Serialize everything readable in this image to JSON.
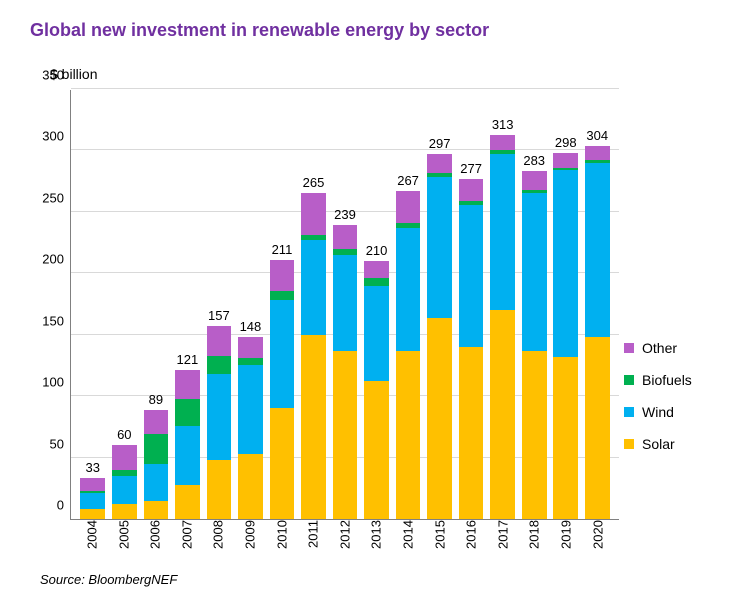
{
  "chart": {
    "type": "bar-stacked",
    "title": "Global new investment in renewable energy by sector",
    "title_color": "#7030a0",
    "title_fontsize": 18,
    "ylabel": "$ billion",
    "label_fontsize": 14,
    "ylim": [
      0,
      350
    ],
    "ytick_step": 50,
    "yticks": [
      0,
      50,
      100,
      150,
      200,
      250,
      300,
      350
    ],
    "grid_color": "#d9d9d9",
    "axis_color": "#808080",
    "background_color": "#ffffff",
    "bar_width": 0.78,
    "categories": [
      "2004",
      "2005",
      "2006",
      "2007",
      "2008",
      "2009",
      "2010",
      "2011",
      "2012",
      "2013",
      "2014",
      "2015",
      "2016",
      "2017",
      "2018",
      "2019",
      "2020"
    ],
    "series": [
      {
        "name": "Solar",
        "color": "#ffc000"
      },
      {
        "name": "Wind",
        "color": "#00b0f0"
      },
      {
        "name": "Biofuels",
        "color": "#00b050"
      },
      {
        "name": "Other",
        "color": "#b85ec8"
      }
    ],
    "values": {
      "Solar": [
        8,
        12,
        15,
        28,
        48,
        53,
        90,
        150,
        137,
        112,
        137,
        164,
        140,
        170,
        137,
        132,
        148
      ],
      "Wind": [
        13,
        23,
        30,
        48,
        70,
        72,
        88,
        77,
        78,
        78,
        100,
        114,
        116,
        127,
        128,
        152,
        142
      ],
      "Biofuels": [
        2,
        5,
        24,
        22,
        15,
        6,
        8,
        4,
        5,
        6,
        4,
        4,
        3,
        3,
        3,
        2,
        2
      ],
      "Other": [
        10,
        20,
        20,
        23,
        24,
        17,
        25,
        34,
        19,
        14,
        26,
        15,
        18,
        13,
        15,
        12,
        12
      ]
    },
    "totals": [
      33,
      60,
      89,
      121,
      157,
      148,
      211,
      265,
      239,
      210,
      267,
      297,
      277,
      313,
      283,
      298,
      304
    ],
    "legend_order": [
      "Other",
      "Biofuels",
      "Wind",
      "Solar"
    ]
  },
  "source": "Source: BloombergNEF"
}
